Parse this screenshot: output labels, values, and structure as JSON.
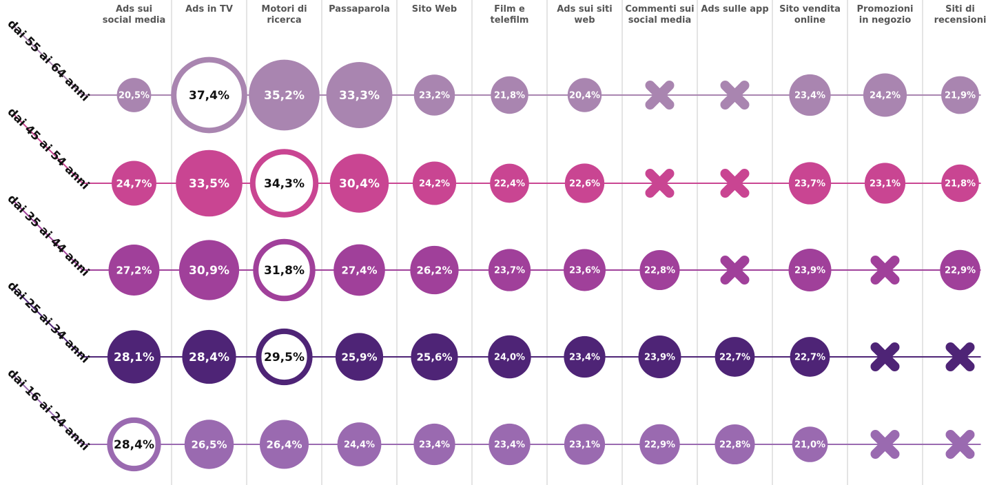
{
  "chart_data": {
    "type": "bubble-grid",
    "categories": [
      "Ads sui\nsocial media",
      "Ads in TV",
      "Motori di\nricerca",
      "Passaparola",
      "Sito Web",
      "Film e\ntelefilm",
      "Ads sui siti\nweb",
      "Commenti sui\nsocial media",
      "Ads sulle app",
      "Sito vendita\nonline",
      "Promozioni\nin negozio",
      "Siti di\nrecensioni"
    ],
    "series": [
      {
        "name": "dai 55 ai 64 anni",
        "color": "#a985b0",
        "values": [
          20.5,
          37.4,
          35.2,
          33.3,
          23.2,
          21.8,
          20.4,
          null,
          null,
          23.4,
          24.2,
          21.9
        ],
        "value_labels": [
          "20,5%",
          "37,4%",
          "35,2%",
          "33,3%",
          "23,2%",
          "21,8%",
          "20,4%",
          null,
          null,
          "23,4%",
          "24,2%",
          "21,9%"
        ]
      },
      {
        "name": "dai 45 ai 54 anni",
        "color": "#c94592",
        "values": [
          24.7,
          33.5,
          34.3,
          30.4,
          24.2,
          22.4,
          22.6,
          null,
          null,
          23.7,
          23.1,
          21.8
        ],
        "value_labels": [
          "24,7%",
          "33,5%",
          "34,3%",
          "30,4%",
          "24,2%",
          "22,4%",
          "22,6%",
          null,
          null,
          "23,7%",
          "23,1%",
          "21,8%"
        ]
      },
      {
        "name": "dai 35 ai 44 anni",
        "color": "#a0409a",
        "values": [
          27.2,
          30.9,
          31.8,
          27.4,
          26.2,
          23.7,
          23.6,
          22.8,
          null,
          23.9,
          null,
          22.9
        ],
        "value_labels": [
          "27,2%",
          "30,9%",
          "31,8%",
          "27,4%",
          "26,2%",
          "23,7%",
          "23,6%",
          "22,8%",
          null,
          "23,9%",
          null,
          "22,9%"
        ]
      },
      {
        "name": "dai 25 ai 34 anni",
        "color": "#4e2476",
        "values": [
          28.1,
          28.4,
          29.5,
          25.9,
          25.6,
          24.0,
          23.4,
          23.9,
          22.7,
          22.7,
          null,
          null
        ],
        "value_labels": [
          "28,1%",
          "28,4%",
          "29,5%",
          "25,9%",
          "25,6%",
          "24,0%",
          "23,4%",
          "23,9%",
          "22,7%",
          "22,7%",
          null,
          null
        ]
      },
      {
        "name": "dai 16 ai 24 anni",
        "color": "#9a6ab0",
        "values": [
          28.4,
          26.5,
          26.4,
          24.4,
          23.4,
          23.4,
          23.1,
          22.9,
          22.8,
          21.0,
          null,
          null
        ],
        "value_labels": [
          "28,4%",
          "26,5%",
          "26,4%",
          "24,4%",
          "23,4%",
          "23,4%",
          "23,1%",
          "22,9%",
          "22,8%",
          "21,0%",
          null,
          null
        ]
      }
    ]
  }
}
